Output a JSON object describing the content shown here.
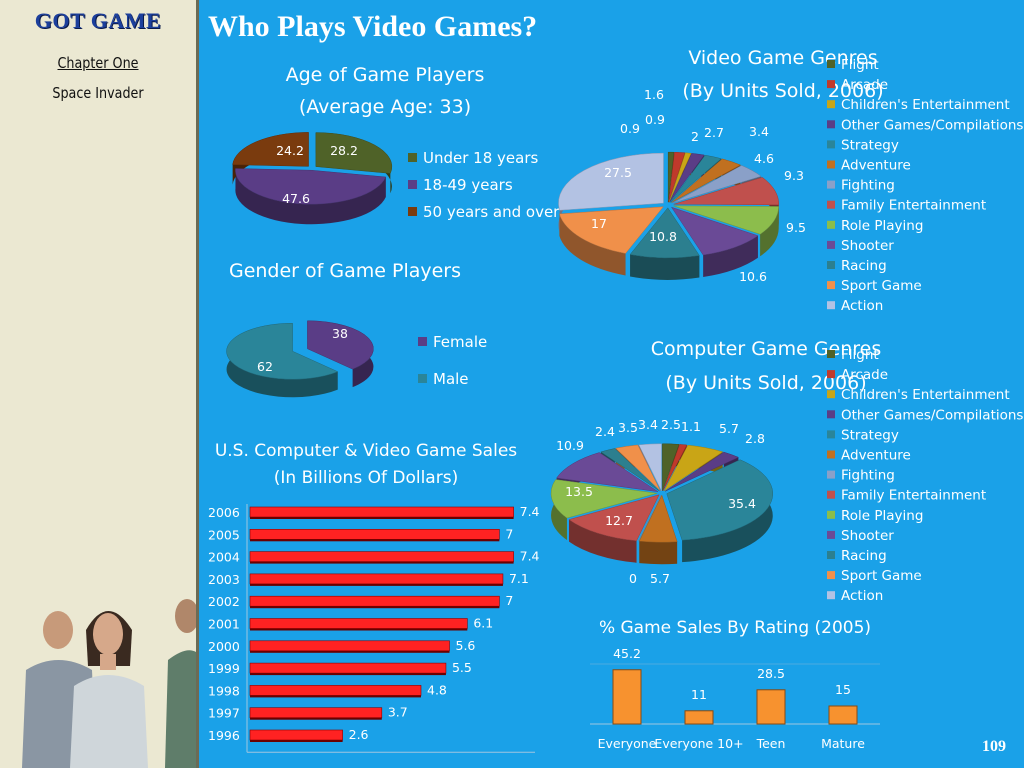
{
  "sidebar": {
    "brand": "GOT GAME",
    "chapter": "Chapter One",
    "subtitle": "Space Invader"
  },
  "page": {
    "title": "Who Plays Video Games?",
    "page_number": "109"
  },
  "colors": {
    "background": "#1aa1e8",
    "under18": "#4f6228",
    "age18to49": "#5a3d86",
    "over50": "#7a3b0e",
    "female": "#5a3d86",
    "male": "#2a8599",
    "bars": "#ff2222",
    "rating_bars": "#f7922f"
  },
  "chart_data": [
    {
      "id": "age",
      "type": "pie",
      "title": "Age of Game Players",
      "subtitle": "(Average Age: 33)",
      "slices": [
        {
          "label": "Under 18 years",
          "value": 28.2,
          "color": "#4f6228"
        },
        {
          "label": "18-49 years",
          "value": 47.6,
          "color": "#5a3d86"
        },
        {
          "label": "50 years and over",
          "value": 24.2,
          "color": "#7a3b0e"
        }
      ],
      "legend_position": "right"
    },
    {
      "id": "gender",
      "type": "pie",
      "title": "Gender of Game Players",
      "slices": [
        {
          "label": "Female",
          "value": 38,
          "color": "#5a3d86"
        },
        {
          "label": "Male",
          "value": 62,
          "color": "#2a8599"
        }
      ],
      "legend_position": "right"
    },
    {
      "id": "sales",
      "type": "bar",
      "orientation": "horizontal",
      "title": "U.S. Computer & Video Game Sales",
      "subtitle": "(In Billions Of Dollars)",
      "categories": [
        "2006",
        "2005",
        "2004",
        "2003",
        "2002",
        "2001",
        "2000",
        "1999",
        "1998",
        "1997",
        "1996"
      ],
      "values": [
        7.4,
        7,
        7.4,
        7.1,
        7,
        6.1,
        5.6,
        5.5,
        4.8,
        3.7,
        2.6
      ],
      "xlim": [
        0,
        8
      ]
    },
    {
      "id": "video_genres",
      "type": "pie",
      "title": "Video Game Genres",
      "subtitle": "(By Units Sold, 2006)",
      "legend": [
        "Flight",
        "Arcade",
        "Children's Entertainment",
        "Other Games/Compilations",
        "Strategy",
        "Adventure",
        "Fighting",
        "Family Entertainment",
        "Role Playing",
        "Shooter",
        "Racing",
        "Sport Game",
        "Action"
      ],
      "values": [
        0.9,
        1.6,
        0.9,
        2,
        2.7,
        3.4,
        4.6,
        9.3,
        9.5,
        10.6,
        10.8,
        17,
        27.5
      ],
      "legend_position": "right"
    },
    {
      "id": "computer_genres",
      "type": "pie",
      "title": "Computer Game Genres",
      "subtitle": "(By Units Sold, 2006)",
      "legend": [
        "Flight",
        "Arcade",
        "Children's Entertainment",
        "Other Games/Compilations",
        "Strategy",
        "Adventure",
        "Fighting",
        "Family Entertainment",
        "Role Playing",
        "Shooter",
        "Racing",
        "Sport Game",
        "Action"
      ],
      "values": [
        2.5,
        1.1,
        5.7,
        2.8,
        35.4,
        5.7,
        0,
        12.7,
        13.5,
        10.9,
        2.4,
        3.5,
        3.4
      ],
      "legend_position": "right"
    },
    {
      "id": "rating",
      "type": "bar",
      "title": "% Game Sales By Rating (2005)",
      "categories": [
        "Everyone",
        "Everyone 10+",
        "Teen",
        "Mature"
      ],
      "values": [
        45.2,
        11,
        28.5,
        15
      ],
      "ylim": [
        0,
        50
      ]
    }
  ],
  "genre_colors": [
    "#4f6228",
    "#c0392b",
    "#c9a516",
    "#5a3d86",
    "#2a8599",
    "#c07020",
    "#8aa0c8",
    "#c0504d",
    "#8cbd4c",
    "#6a4a96",
    "#2c7f8f",
    "#f0904a",
    "#b3c2e3"
  ]
}
